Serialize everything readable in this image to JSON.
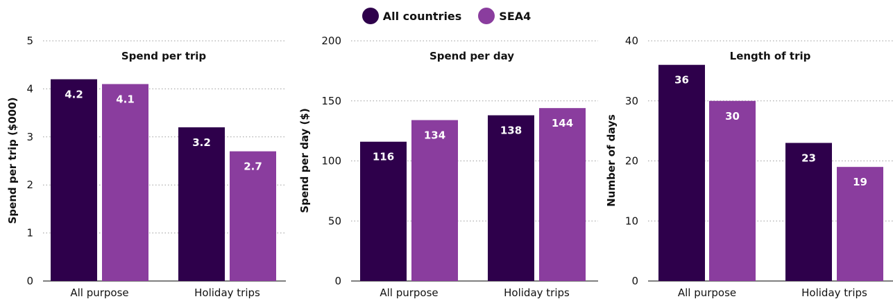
{
  "legend": {
    "items": [
      {
        "label": "All countries",
        "color": "#2e004b"
      },
      {
        "label": "SEA4",
        "color": "#8a3d9e"
      }
    ]
  },
  "chart_data": [
    {
      "type": "bar",
      "title": "Spend per trip",
      "ylabel": "Spend per trip ($000)",
      "categories": [
        "All purpose",
        "Holiday trips"
      ],
      "ylim": [
        0,
        5
      ],
      "yticks": [
        0,
        1,
        2,
        3,
        4,
        5
      ],
      "series": [
        {
          "name": "All countries",
          "values": [
            4.2,
            3.2
          ],
          "labels": [
            "4.2",
            "3.2"
          ]
        },
        {
          "name": "SEA4",
          "values": [
            4.1,
            2.7
          ],
          "labels": [
            "4.1",
            "2.7"
          ]
        }
      ],
      "grid": true
    },
    {
      "type": "bar",
      "title": "Spend per day",
      "ylabel": "Spend per day ($)",
      "categories": [
        "All purpose",
        "Holiday trips"
      ],
      "ylim": [
        0,
        200
      ],
      "yticks": [
        0,
        50,
        100,
        150,
        200
      ],
      "series": [
        {
          "name": "All countries",
          "values": [
            116,
            138
          ],
          "labels": [
            "116",
            "138"
          ]
        },
        {
          "name": "SEA4",
          "values": [
            134,
            144
          ],
          "labels": [
            "134",
            "144"
          ]
        }
      ],
      "grid": true
    },
    {
      "type": "bar",
      "title": "Length of trip",
      "ylabel": "Number of days",
      "categories": [
        "All purpose",
        "Holiday trips"
      ],
      "ylim": [
        0,
        40
      ],
      "yticks": [
        0,
        10,
        20,
        30,
        40
      ],
      "series": [
        {
          "name": "All countries",
          "values": [
            36,
            23
          ],
          "labels": [
            "36",
            "23"
          ]
        },
        {
          "name": "SEA4",
          "values": [
            30,
            19
          ],
          "labels": [
            "30",
            "19"
          ]
        }
      ],
      "grid": true
    }
  ]
}
